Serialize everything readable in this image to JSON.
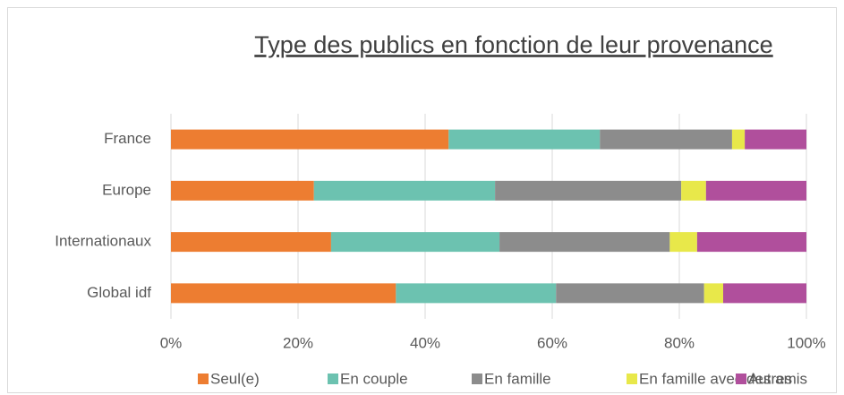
{
  "chart_data": {
    "type": "stacked_bar_horizontal",
    "title": "Type des publics en fonction de leur provenance",
    "categories": [
      "France",
      "Europe",
      "Internationaux",
      "Global idf"
    ],
    "series": [
      {
        "name": "Seul(e)",
        "color": "#ed7d31",
        "values": [
          43.7,
          22.5,
          25.2,
          35.4
        ]
      },
      {
        "name": "En couple",
        "color": "#6cc2b0",
        "values": [
          23.8,
          28.5,
          26.5,
          25.2
        ]
      },
      {
        "name": "En famille",
        "color": "#8c8c8c",
        "values": [
          20.8,
          29.3,
          26.8,
          23.3
        ]
      },
      {
        "name": "En famille avec des amis",
        "color": "#e8e84a",
        "values": [
          2.0,
          3.9,
          4.3,
          3.0
        ]
      },
      {
        "name": "Autres",
        "color": "#b04f9c",
        "values": [
          9.7,
          15.8,
          17.2,
          13.1
        ]
      }
    ],
    "xlim": [
      0,
      100
    ],
    "xticks": [
      {
        "value": 0,
        "label": "0%"
      },
      {
        "value": 20,
        "label": "20%"
      },
      {
        "value": 40,
        "label": "40%"
      },
      {
        "value": 60,
        "label": "60%"
      },
      {
        "value": 80,
        "label": "80%"
      },
      {
        "value": 100,
        "label": "100%"
      }
    ],
    "grid": true,
    "legend": "bottom"
  }
}
